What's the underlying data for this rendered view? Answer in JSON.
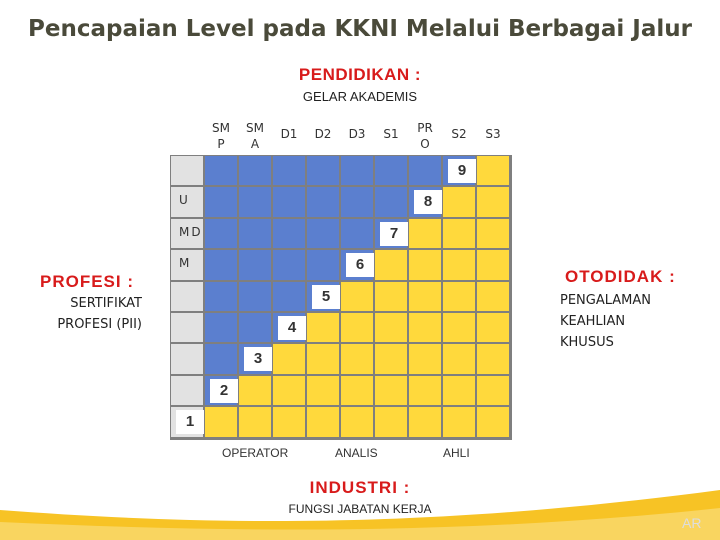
{
  "title": "Pencapaian Level pada KKNI Melalui Berbagai Jalur",
  "pendidikan": {
    "label": "PENDIDIKAN :",
    "sub": "GELAR AKADEMIS"
  },
  "columns": [
    "SM\nP",
    "SM\nA",
    "D1",
    "D2",
    "D3",
    "S1",
    "PR\nO",
    "S2",
    "S3"
  ],
  "profesi": {
    "label": "PROFESI :",
    "sub": "SERTIFIKAT\nPROFESI (PII)"
  },
  "profesi_levels": [
    "U",
    "MD",
    "M"
  ],
  "otodidak": {
    "label": "OTODIDAK :",
    "sub": "PENGALAMAN\nKEAHLIAN\nKHUSUS"
  },
  "industri": {
    "label": "INDUSTRI :",
    "sub": "FUNGSI JABATAN KERJA",
    "levels": [
      "OPERATOR",
      "ANALIS",
      "AHLI"
    ]
  },
  "kkni_levels": [
    "1",
    "2",
    "3",
    "4",
    "5",
    "6",
    "7",
    "8",
    "9"
  ],
  "colors": {
    "blue": "#5b7fcf",
    "yellow": "#ffd93c",
    "lightgray": "#e2e2e2",
    "title": "#4a4a3a",
    "red": "#d81b1b"
  },
  "watermark": "AR"
}
